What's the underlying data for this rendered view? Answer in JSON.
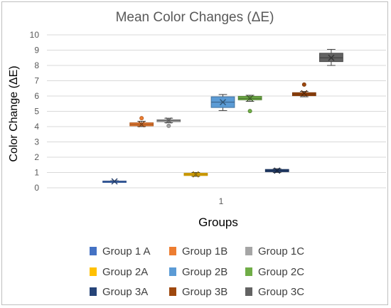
{
  "chart_data": {
    "type": "box",
    "title": "Mean Color Changes (ΔE)",
    "xlabel": "Groups",
    "ylabel": "Color Change (ΔE)",
    "ylim": [
      0,
      10
    ],
    "yticks": [
      "0",
      "1",
      "2",
      "3",
      "4",
      "5",
      "6",
      "7",
      "8",
      "9",
      "10"
    ],
    "categories": [
      "1"
    ],
    "grid": "horizontal",
    "legend_position": "bottom",
    "series": [
      {
        "name": "Group 1 A",
        "color": "#4472c4",
        "min": 0.38,
        "q1": 0.4,
        "median": 0.42,
        "q3": 0.44,
        "max": 0.46,
        "mean": 0.42,
        "outliers": []
      },
      {
        "name": "Group 1B",
        "color": "#ed7d31",
        "min": 4.0,
        "q1": 4.05,
        "median": 4.15,
        "q3": 4.25,
        "max": 4.35,
        "mean": 4.15,
        "outliers": [
          4.55
        ]
      },
      {
        "name": "Group 1C",
        "color": "#a5a5a5",
        "min": 4.25,
        "q1": 4.32,
        "median": 4.4,
        "q3": 4.45,
        "max": 4.55,
        "mean": 4.4,
        "outliers": [
          4.05
        ]
      },
      {
        "name": "Group 2A",
        "color": "#ffc000",
        "min": 0.75,
        "q1": 0.8,
        "median": 0.88,
        "q3": 0.95,
        "max": 1.0,
        "mean": 0.88,
        "outliers": []
      },
      {
        "name": "Group 2B",
        "color": "#5b9bd5",
        "min": 5.05,
        "q1": 5.25,
        "median": 5.6,
        "q3": 5.95,
        "max": 6.1,
        "mean": 5.6,
        "outliers": []
      },
      {
        "name": "Group 2C",
        "color": "#70ad47",
        "min": 5.65,
        "q1": 5.75,
        "median": 5.85,
        "q3": 5.98,
        "max": 6.05,
        "mean": 5.85,
        "outliers": [
          5.02
        ]
      },
      {
        "name": "Group 3A",
        "color": "#264478",
        "min": 1.0,
        "q1": 1.05,
        "median": 1.12,
        "q3": 1.2,
        "max": 1.25,
        "mean": 1.12,
        "outliers": []
      },
      {
        "name": "Group 3B",
        "color": "#9e480e",
        "min": 5.95,
        "q1": 6.02,
        "median": 6.12,
        "q3": 6.22,
        "max": 6.3,
        "mean": 6.18,
        "outliers": [
          6.75
        ]
      },
      {
        "name": "Group 3C",
        "color": "#636363",
        "min": 8.0,
        "q1": 8.25,
        "median": 8.5,
        "q3": 8.8,
        "max": 9.05,
        "mean": 8.5,
        "outliers": []
      }
    ]
  }
}
